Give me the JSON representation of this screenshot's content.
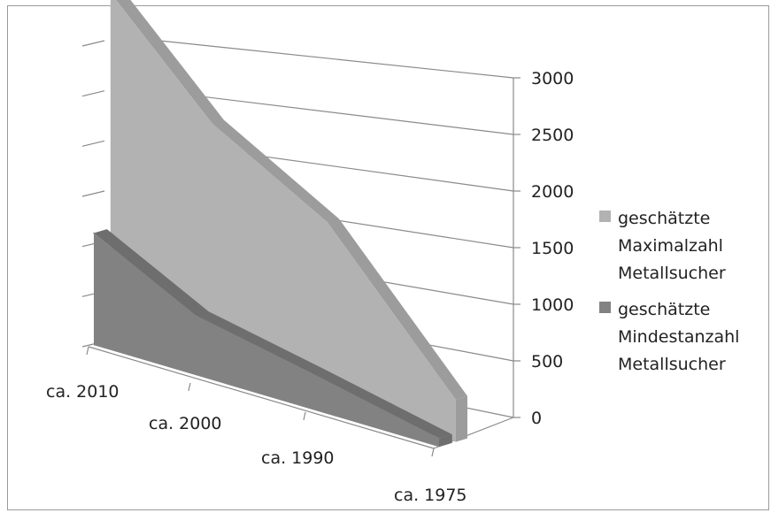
{
  "chart_data": {
    "type": "area",
    "style": "3d",
    "categories": [
      "ca. 2010",
      "ca. 2000",
      "ca. 1990",
      "ca. 1975"
    ],
    "series": [
      {
        "name": "geschätzte Maximalzahl Metallsucher",
        "values": [
          3100,
          2300,
          1700,
          400
        ],
        "color": "#b2b2b2",
        "side_color": "#9c9c9c"
      },
      {
        "name": "geschätzte Mindestanzahl Metallsucher",
        "values": [
          1000,
          600,
          350,
          80
        ],
        "color": "#828282",
        "side_color": "#6e6e6e"
      }
    ],
    "yticks": [
      "0",
      "500",
      "1000",
      "1500",
      "2000",
      "2500",
      "3000"
    ],
    "ylim": [
      0,
      3000
    ],
    "grid": true,
    "legend": "right",
    "legend_lines": [
      [
        "geschätzte",
        "Maximalzahl",
        "Metallsucher"
      ],
      [
        "geschätzte",
        "Mindestanzahl",
        "Metallsucher"
      ]
    ]
  }
}
